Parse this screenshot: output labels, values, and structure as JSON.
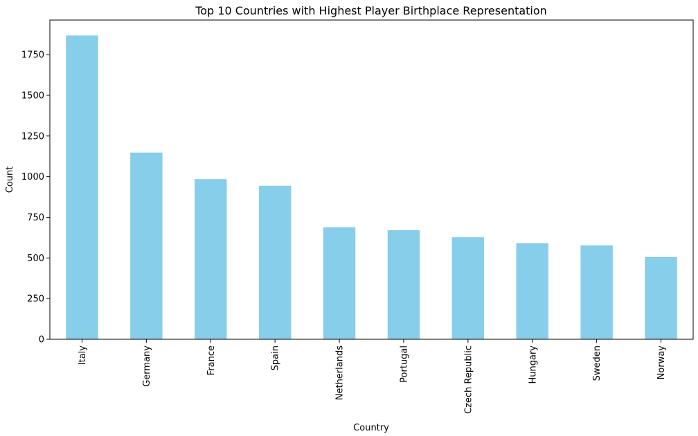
{
  "chart_data": {
    "type": "bar",
    "title": "Top 10 Countries with Highest Player Birthplace Representation",
    "xlabel": "Country",
    "ylabel": "Count",
    "categories": [
      "Italy",
      "Germany",
      "France",
      "Spain",
      "Netherlands",
      "Portugal",
      "Czech Republic",
      "Hungary",
      "Sweden",
      "Norway"
    ],
    "values": [
      1868,
      1148,
      985,
      944,
      688,
      671,
      628,
      590,
      577,
      506
    ],
    "ylim": [
      0,
      1963
    ],
    "yticks": [
      0,
      250,
      500,
      750,
      1000,
      1250,
      1500,
      1750
    ],
    "yticks_labels": [
      "0",
      "250",
      "500",
      "750",
      "1000",
      "1250",
      "1500",
      "1750"
    ],
    "bar_color": "#87ceeb",
    "grid": false,
    "legend": "none"
  }
}
